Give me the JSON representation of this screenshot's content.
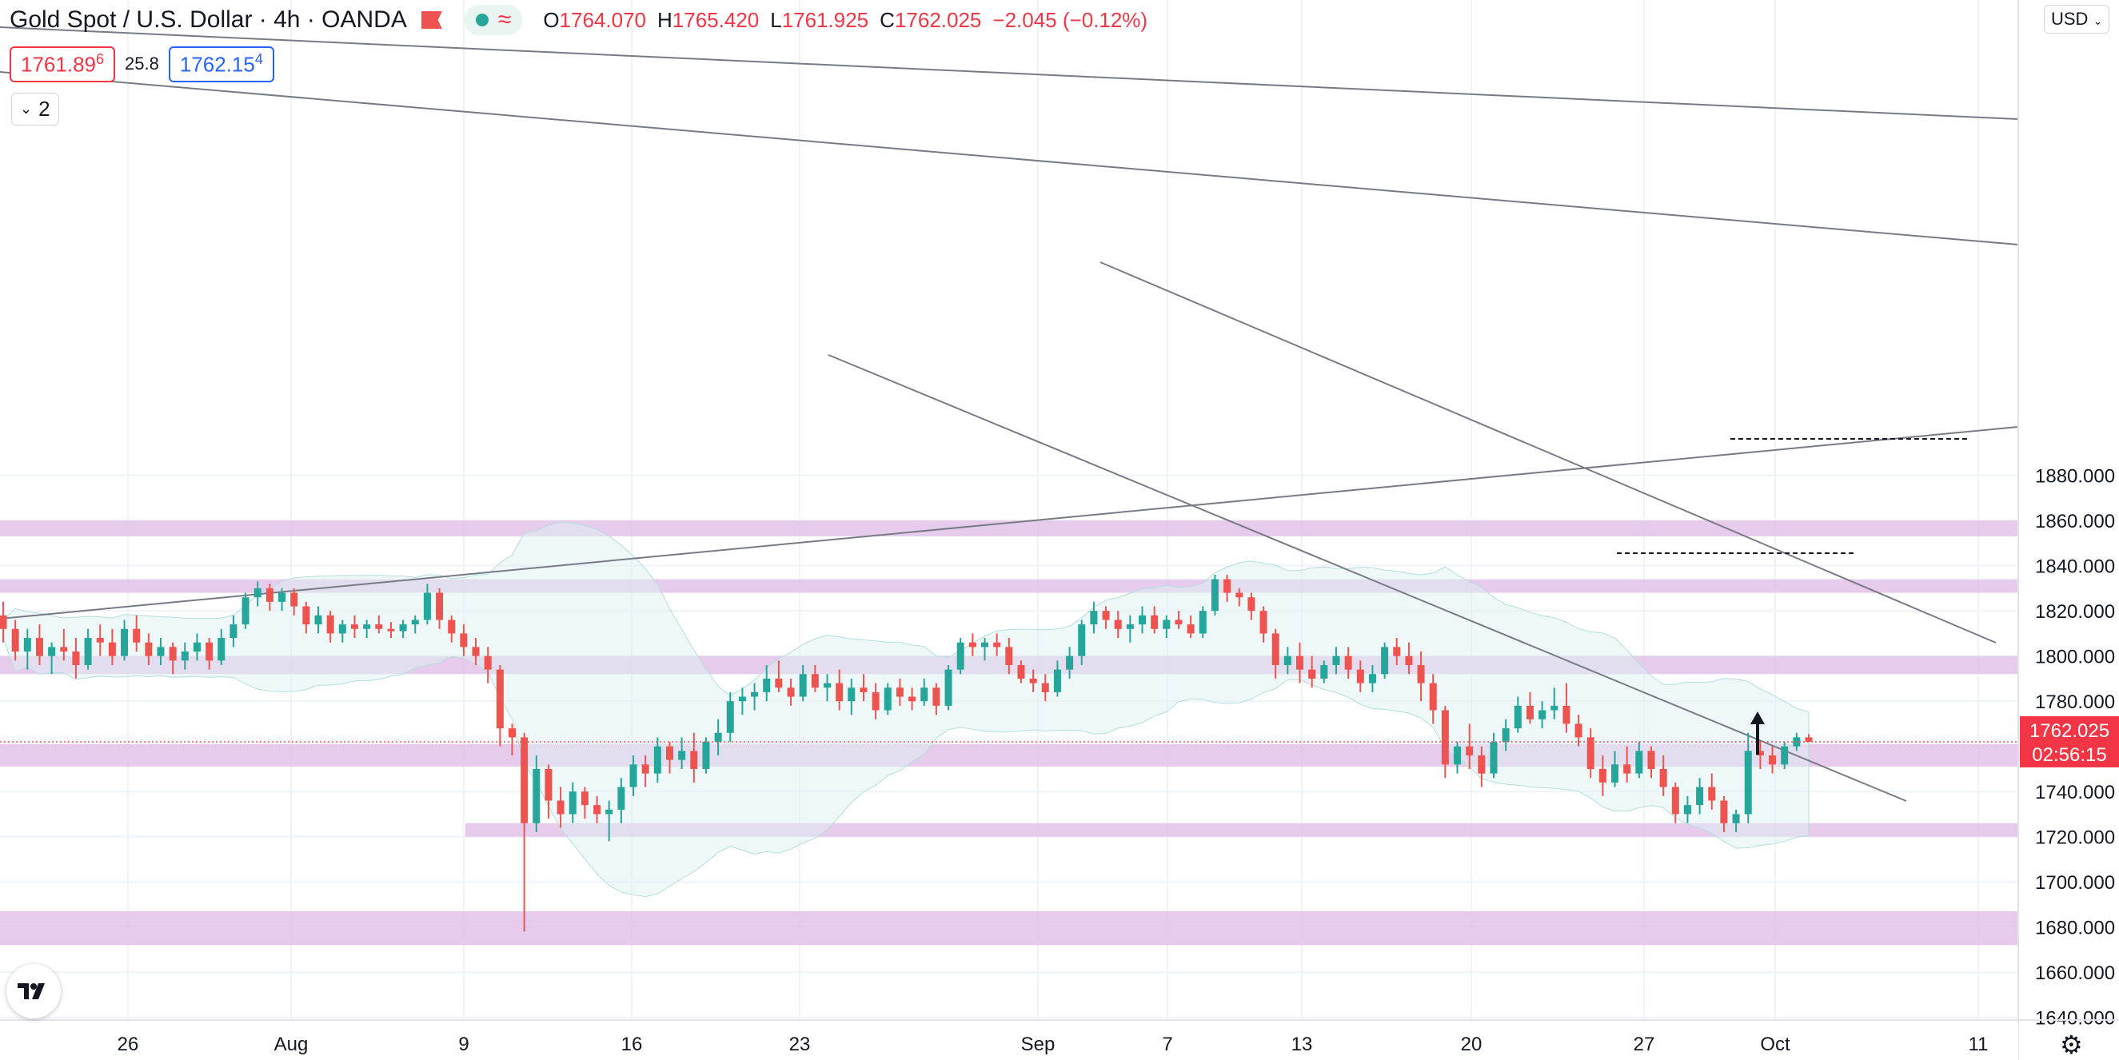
{
  "header": {
    "symbol_title": "Gold Spot / U.S. Dollar · 4h · OANDA",
    "open_label": "O",
    "open": "1764.070",
    "high_label": "H",
    "high": "1765.420",
    "low_label": "L",
    "low": "1761.925",
    "close_label": "C",
    "close": "1762.025",
    "change": "−2.045 (−0.12%)",
    "bid_main": "1761.89",
    "bid_sup": "6",
    "spread": "25.8",
    "ask_main": "1762.15",
    "ask_sup": "4",
    "indicator_count": "2",
    "currency": "USD"
  },
  "colors": {
    "up": "#26a69a",
    "down": "#ef5350",
    "zone": "#e1bee7",
    "band_fill": "#e0f2f1",
    "line": "#787b86",
    "grid": "#f0f3fa"
  },
  "chart_data": {
    "type": "candlestick",
    "timeframe": "4h",
    "ylim": [
      1636,
      1904
    ],
    "yticks": [
      "1640.000",
      "1660.000",
      "1680.000",
      "1700.000",
      "1720.000",
      "1740.000",
      "1760.000",
      "1780.000",
      "1800.000",
      "1820.000",
      "1840.000",
      "1860.000",
      "1880.000"
    ],
    "xticks": [
      "26",
      "Aug",
      "9",
      "16",
      "23",
      "Sep",
      "7",
      "13",
      "20",
      "27",
      "Oct",
      "11"
    ],
    "last_price": {
      "value": 1762.025,
      "label": "1762.025",
      "countdown": "02:56:15"
    },
    "ohlc": [
      [
        1818,
        1824,
        1806,
        1812
      ],
      [
        1812,
        1816,
        1798,
        1802
      ],
      [
        1802,
        1812,
        1794,
        1808
      ],
      [
        1808,
        1814,
        1796,
        1800
      ],
      [
        1800,
        1806,
        1792,
        1804
      ],
      [
        1804,
        1812,
        1798,
        1802
      ],
      [
        1802,
        1808,
        1790,
        1796
      ],
      [
        1796,
        1812,
        1794,
        1808
      ],
      [
        1808,
        1814,
        1800,
        1806
      ],
      [
        1806,
        1812,
        1796,
        1800
      ],
      [
        1800,
        1816,
        1798,
        1812
      ],
      [
        1812,
        1818,
        1802,
        1806
      ],
      [
        1806,
        1810,
        1796,
        1800
      ],
      [
        1800,
        1808,
        1796,
        1804
      ],
      [
        1804,
        1806,
        1792,
        1798
      ],
      [
        1798,
        1806,
        1794,
        1802
      ],
      [
        1802,
        1810,
        1798,
        1806
      ],
      [
        1806,
        1808,
        1794,
        1798
      ],
      [
        1798,
        1812,
        1796,
        1808
      ],
      [
        1808,
        1818,
        1804,
        1814
      ],
      [
        1814,
        1828,
        1812,
        1826
      ],
      [
        1826,
        1833,
        1822,
        1830
      ],
      [
        1830,
        1832,
        1820,
        1824
      ],
      [
        1824,
        1830,
        1820,
        1828
      ],
      [
        1828,
        1830,
        1818,
        1822
      ],
      [
        1822,
        1824,
        1810,
        1814
      ],
      [
        1814,
        1822,
        1810,
        1818
      ],
      [
        1818,
        1820,
        1806,
        1810
      ],
      [
        1810,
        1816,
        1806,
        1814
      ],
      [
        1814,
        1818,
        1808,
        1812
      ],
      [
        1812,
        1816,
        1808,
        1814
      ],
      [
        1814,
        1818,
        1810,
        1812
      ],
      [
        1812,
        1815,
        1808,
        1811
      ],
      [
        1811,
        1816,
        1808,
        1814
      ],
      [
        1814,
        1818,
        1810,
        1816
      ],
      [
        1816,
        1832,
        1814,
        1828
      ],
      [
        1828,
        1830,
        1812,
        1816
      ],
      [
        1816,
        1818,
        1806,
        1810
      ],
      [
        1810,
        1814,
        1800,
        1804
      ],
      [
        1804,
        1808,
        1796,
        1800
      ],
      [
        1800,
        1804,
        1788,
        1794
      ],
      [
        1794,
        1796,
        1760,
        1768
      ],
      [
        1768,
        1770,
        1756,
        1764
      ],
      [
        1764,
        1766,
        1678,
        1726
      ],
      [
        1726,
        1756,
        1722,
        1750
      ],
      [
        1750,
        1752,
        1728,
        1736
      ],
      [
        1736,
        1742,
        1724,
        1730
      ],
      [
        1730,
        1744,
        1726,
        1740
      ],
      [
        1740,
        1742,
        1728,
        1734
      ],
      [
        1734,
        1738,
        1726,
        1730
      ],
      [
        1730,
        1736,
        1718,
        1732
      ],
      [
        1732,
        1746,
        1726,
        1742
      ],
      [
        1742,
        1756,
        1738,
        1752
      ],
      [
        1752,
        1756,
        1742,
        1748
      ],
      [
        1748,
        1764,
        1744,
        1760
      ],
      [
        1760,
        1762,
        1748,
        1754
      ],
      [
        1754,
        1764,
        1750,
        1758
      ],
      [
        1758,
        1766,
        1744,
        1750
      ],
      [
        1750,
        1764,
        1748,
        1762
      ],
      [
        1762,
        1772,
        1756,
        1766
      ],
      [
        1766,
        1784,
        1762,
        1780
      ],
      [
        1780,
        1786,
        1774,
        1782
      ],
      [
        1782,
        1788,
        1776,
        1784
      ],
      [
        1784,
        1796,
        1780,
        1790
      ],
      [
        1790,
        1798,
        1784,
        1786
      ],
      [
        1786,
        1790,
        1778,
        1782
      ],
      [
        1782,
        1796,
        1780,
        1792
      ],
      [
        1792,
        1796,
        1784,
        1786
      ],
      [
        1786,
        1792,
        1780,
        1788
      ],
      [
        1788,
        1794,
        1776,
        1780
      ],
      [
        1780,
        1790,
        1774,
        1786
      ],
      [
        1786,
        1792,
        1780,
        1784
      ],
      [
        1784,
        1788,
        1772,
        1776
      ],
      [
        1776,
        1788,
        1774,
        1786
      ],
      [
        1786,
        1790,
        1778,
        1782
      ],
      [
        1782,
        1786,
        1776,
        1780
      ],
      [
        1780,
        1790,
        1778,
        1786
      ],
      [
        1786,
        1788,
        1774,
        1778
      ],
      [
        1778,
        1796,
        1776,
        1794
      ],
      [
        1794,
        1808,
        1792,
        1806
      ],
      [
        1806,
        1810,
        1800,
        1804
      ],
      [
        1804,
        1808,
        1798,
        1806
      ],
      [
        1806,
        1810,
        1800,
        1804
      ],
      [
        1804,
        1808,
        1792,
        1796
      ],
      [
        1796,
        1798,
        1788,
        1790
      ],
      [
        1790,
        1794,
        1784,
        1788
      ],
      [
        1788,
        1792,
        1780,
        1784
      ],
      [
        1784,
        1798,
        1782,
        1794
      ],
      [
        1794,
        1804,
        1790,
        1800
      ],
      [
        1800,
        1816,
        1796,
        1814
      ],
      [
        1814,
        1824,
        1810,
        1820
      ],
      [
        1820,
        1822,
        1812,
        1816
      ],
      [
        1816,
        1820,
        1808,
        1812
      ],
      [
        1812,
        1818,
        1806,
        1814
      ],
      [
        1814,
        1822,
        1810,
        1818
      ],
      [
        1818,
        1822,
        1810,
        1812
      ],
      [
        1812,
        1818,
        1808,
        1816
      ],
      [
        1816,
        1820,
        1812,
        1814
      ],
      [
        1814,
        1818,
        1808,
        1810
      ],
      [
        1810,
        1822,
        1808,
        1820
      ],
      [
        1820,
        1836,
        1818,
        1834
      ],
      [
        1834,
        1836,
        1824,
        1828
      ],
      [
        1828,
        1830,
        1822,
        1826
      ],
      [
        1826,
        1828,
        1816,
        1820
      ],
      [
        1820,
        1822,
        1806,
        1810
      ],
      [
        1810,
        1812,
        1790,
        1796
      ],
      [
        1796,
        1804,
        1792,
        1800
      ],
      [
        1800,
        1806,
        1788,
        1794
      ],
      [
        1794,
        1800,
        1786,
        1790
      ],
      [
        1790,
        1798,
        1788,
        1796
      ],
      [
        1796,
        1804,
        1792,
        1800
      ],
      [
        1800,
        1804,
        1790,
        1794
      ],
      [
        1794,
        1798,
        1784,
        1788
      ],
      [
        1788,
        1796,
        1784,
        1792
      ],
      [
        1792,
        1806,
        1790,
        1804
      ],
      [
        1804,
        1808,
        1796,
        1800
      ],
      [
        1800,
        1806,
        1792,
        1796
      ],
      [
        1796,
        1802,
        1780,
        1788
      ],
      [
        1788,
        1792,
        1770,
        1776
      ],
      [
        1776,
        1778,
        1746,
        1752
      ],
      [
        1752,
        1762,
        1748,
        1760
      ],
      [
        1760,
        1770,
        1750,
        1756
      ],
      [
        1756,
        1760,
        1742,
        1748
      ],
      [
        1748,
        1766,
        1746,
        1762
      ],
      [
        1762,
        1772,
        1758,
        1768
      ],
      [
        1768,
        1782,
        1766,
        1778
      ],
      [
        1778,
        1784,
        1770,
        1772
      ],
      [
        1772,
        1780,
        1768,
        1776
      ],
      [
        1776,
        1786,
        1772,
        1778
      ],
      [
        1778,
        1788,
        1766,
        1770
      ],
      [
        1770,
        1774,
        1760,
        1764
      ],
      [
        1764,
        1768,
        1746,
        1750
      ],
      [
        1750,
        1756,
        1738,
        1744
      ],
      [
        1744,
        1758,
        1742,
        1752
      ],
      [
        1752,
        1760,
        1744,
        1748
      ],
      [
        1748,
        1762,
        1746,
        1758
      ],
      [
        1758,
        1760,
        1746,
        1750
      ],
      [
        1750,
        1756,
        1738,
        1742
      ],
      [
        1742,
        1744,
        1726,
        1730
      ],
      [
        1730,
        1738,
        1726,
        1734
      ],
      [
        1734,
        1746,
        1730,
        1742
      ],
      [
        1742,
        1748,
        1732,
        1736
      ],
      [
        1736,
        1738,
        1722,
        1726
      ],
      [
        1726,
        1732,
        1722,
        1730
      ],
      [
        1730,
        1766,
        1726,
        1758
      ],
      [
        1758,
        1762,
        1750,
        1756
      ],
      [
        1756,
        1760,
        1748,
        1752
      ],
      [
        1752,
        1762,
        1750,
        1760
      ],
      [
        1760,
        1766,
        1758,
        1764
      ],
      [
        1764,
        1765.42,
        1761.925,
        1762.025
      ]
    ],
    "zones": [
      {
        "low": 1853,
        "high": 1860
      },
      {
        "low": 1828,
        "high": 1834
      },
      {
        "low": 1792,
        "high": 1800
      },
      {
        "low": 1751,
        "high": 1761
      },
      {
        "low": 1720,
        "high": 1726
      },
      {
        "low": 1672,
        "high": 1687
      }
    ]
  }
}
